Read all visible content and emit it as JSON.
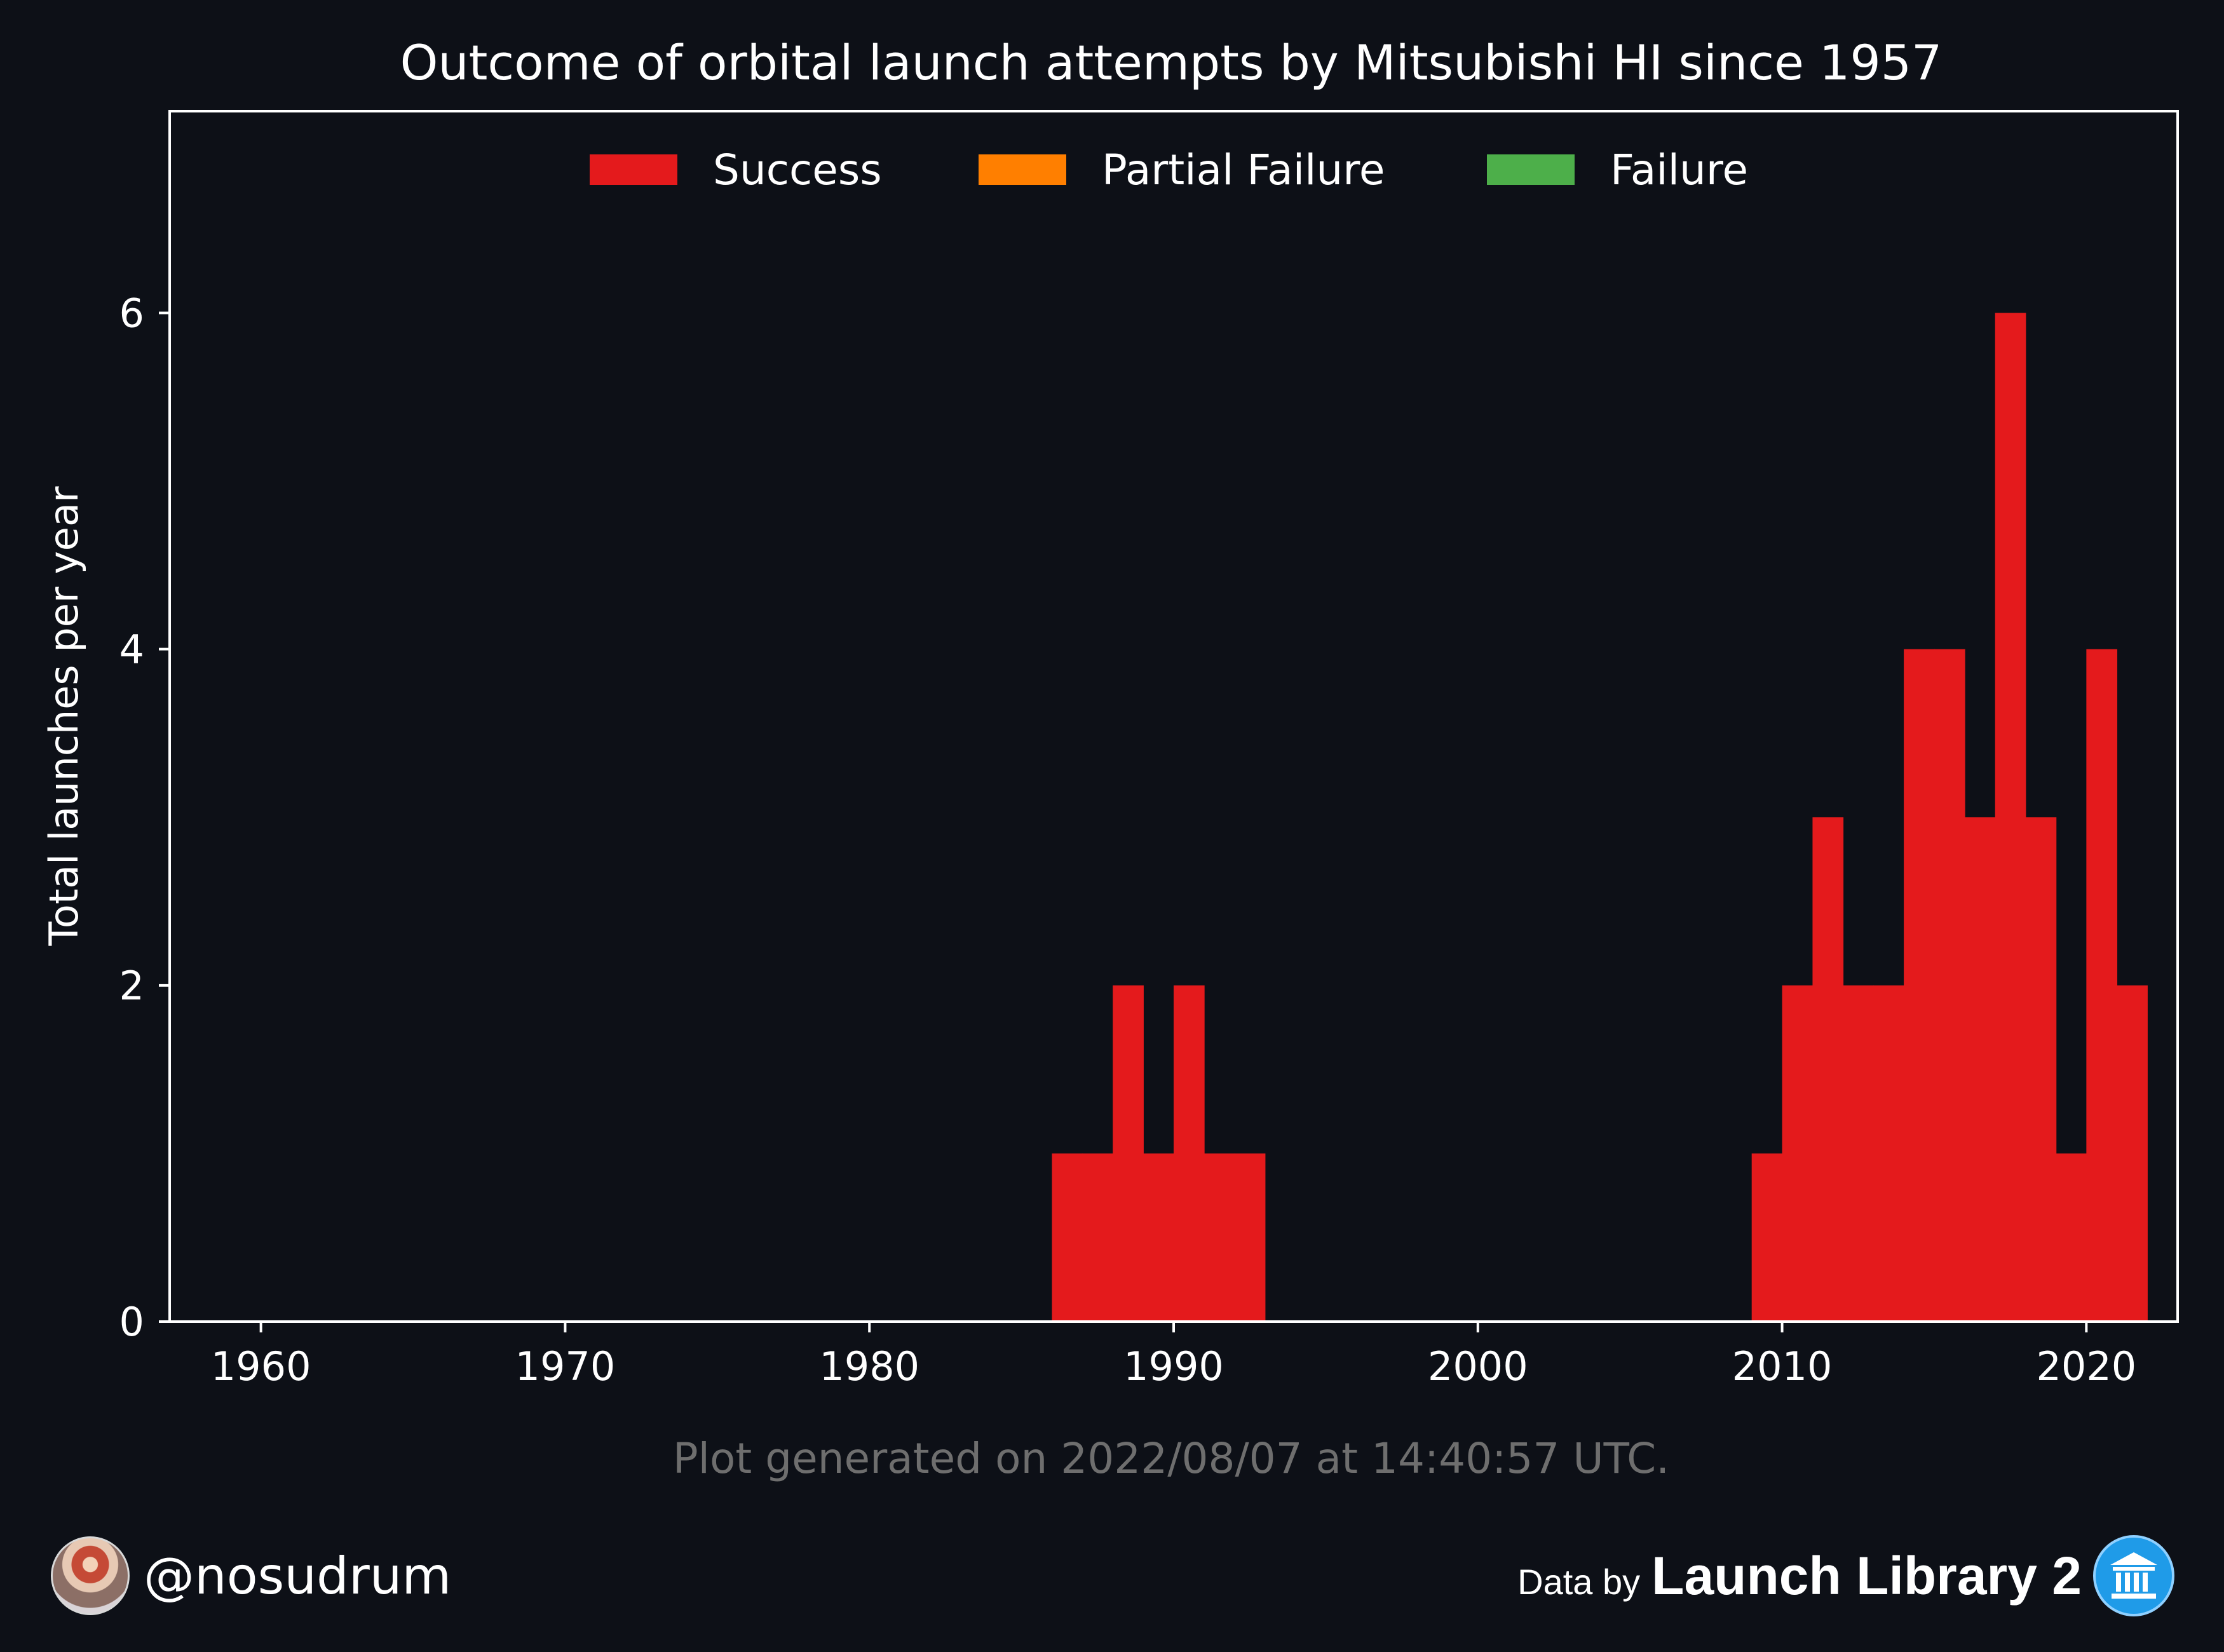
{
  "chart_data": {
    "type": "bar",
    "title": "Outcome of orbital launch attempts by Mitsubishi HI since 1957",
    "ylabel": "Total launches per year",
    "xlabel": "",
    "xlim": [
      1957,
      2023
    ],
    "ylim": [
      0,
      7.2
    ],
    "xticks": [
      1960,
      1970,
      1980,
      1990,
      2000,
      2010,
      2020
    ],
    "yticks": [
      0,
      2,
      4,
      6
    ],
    "legend_position": "top-center",
    "grid": false,
    "colors": {
      "background": "#0d1017",
      "Success": "#e41a1c",
      "Partial Failure": "#ff7f00",
      "Failure": "#4daf4a"
    },
    "series": [
      {
        "name": "Success",
        "color": "#e41a1c",
        "x": [
          1986,
          1987,
          1988,
          1989,
          1990,
          1991,
          1992,
          2009,
          2010,
          2011,
          2012,
          2013,
          2014,
          2015,
          2016,
          2017,
          2018,
          2019,
          2020,
          2021
        ],
        "values": [
          1,
          1,
          2,
          1,
          2,
          1,
          1,
          1,
          2,
          3,
          2,
          2,
          4,
          4,
          3,
          6,
          3,
          1,
          4,
          2
        ]
      },
      {
        "name": "Partial Failure",
        "color": "#ff7f00",
        "x": [],
        "values": []
      },
      {
        "name": "Failure",
        "color": "#4daf4a",
        "x": [],
        "values": []
      }
    ]
  },
  "footnote": "Plot generated on 2022/08/07 at 14:40:57 UTC.",
  "footer": {
    "handle": "@nosudrum",
    "data_by": "Data by",
    "source": "Launch Library 2",
    "avatar_icon": "astronaut-avatar-icon",
    "source_icon": "library-building-icon"
  }
}
